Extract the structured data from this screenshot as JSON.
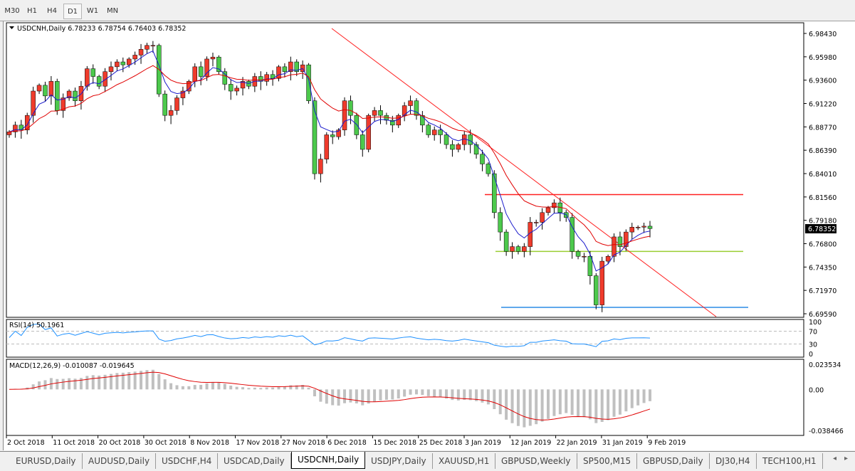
{
  "toolbar": {
    "timeframes": [
      "M30",
      "H1",
      "H4",
      "D1",
      "W1",
      "MN"
    ],
    "active": "D1"
  },
  "chart": {
    "header": "USDCNH,Daily  6.78233 6.78754 6.76403 6.78352",
    "current_price": "6.78352",
    "price_ticks": [
      "6.98430",
      "6.95980",
      "6.93600",
      "6.91220",
      "6.88770",
      "6.86390",
      "6.84010",
      "6.81560",
      "6.79180",
      "6.76800",
      "6.74350",
      "6.71970",
      "6.69590"
    ],
    "price_range": [
      6.6959,
      6.9843
    ],
    "date_ticks": [
      "2 Oct 2018",
      "11 Oct 2018",
      "20 Oct 2018",
      "30 Oct 2018",
      "8 Nov 2018",
      "17 Nov 2018",
      "27 Nov 2018",
      "6 Dec 2018",
      "15 Dec 2018",
      "25 Dec 2018",
      "3 Jan 2019",
      "12 Jan 2019",
      "22 Jan 2019",
      "31 Jan 2019",
      "9 Feb 2019"
    ],
    "closes": [
      6.883,
      6.89,
      6.885,
      6.9,
      6.925,
      6.931,
      6.92,
      6.935,
      6.905,
      6.918,
      6.925,
      6.915,
      6.93,
      6.948,
      6.94,
      6.93,
      6.945,
      6.95,
      6.955,
      6.952,
      6.958,
      6.962,
      6.968,
      6.972,
      6.972,
      6.922,
      6.9,
      6.905,
      6.918,
      6.925,
      6.935,
      6.95,
      6.94,
      6.958,
      6.96,
      6.945,
      6.932,
      6.925,
      6.928,
      6.935,
      6.93,
      6.94,
      6.935,
      6.942,
      6.938,
      6.95,
      6.945,
      6.955,
      6.945,
      6.952,
      6.915,
      6.84,
      6.855,
      6.88,
      6.878,
      6.885,
      6.915,
      6.9,
      6.88,
      6.865,
      6.9,
      6.905,
      6.9,
      6.895,
      6.89,
      6.9,
      6.91,
      6.915,
      6.9,
      6.89,
      6.88,
      6.885,
      6.88,
      6.87,
      6.865,
      6.87,
      6.88,
      6.87,
      6.86,
      6.85,
      6.84,
      6.8,
      6.78,
      6.76,
      6.765,
      6.76,
      6.765,
      6.79,
      6.79,
      6.8,
      6.805,
      6.81,
      6.8,
      6.795,
      6.76,
      6.755,
      6.755,
      6.735,
      6.705,
      6.75,
      6.755,
      6.775,
      6.765,
      6.78,
      6.785,
      6.785,
      6.786,
      6.78352
    ],
    "colors": {
      "bull": "#ef3b2c",
      "bear": "#4cc94c",
      "ma_fast": "#1c1ccc",
      "ma_slow": "#e00000",
      "resistance": "#ff2020",
      "support": "#9acd32",
      "low_line": "#2b8ce6",
      "trendline": "#ff2020"
    },
    "levels": {
      "resistance": 6.8185,
      "support": 6.76,
      "low": 6.7025
    },
    "trendline": {
      "from": 6.9894,
      "to": 6.6929
    }
  },
  "rsi": {
    "label": "RSI(14) 50.1961",
    "ticks": [
      "100",
      "70",
      "30",
      "0"
    ],
    "color": "#1e90ff"
  },
  "macd": {
    "label": "MACD(12,26,9) -0.010087 -0.019645",
    "ticks": [
      "0.023534",
      "0.00",
      "-0.038466"
    ],
    "range": [
      -0.038466,
      0.023534
    ],
    "hist_color": "#c0c0c0",
    "signal_color": "#e00000"
  },
  "tabs": [
    "EURUSD,Daily",
    "AUDUSD,Daily",
    "USDCHF,H4",
    "USDCAD,Daily",
    "USDCNH,Daily",
    "USDJPY,Daily",
    "XAUUSD,H1",
    "GBPUSD,Weekly",
    "SP500,M15",
    "GBPUSD,Daily",
    "DJ30,H4",
    "TECH100,H1"
  ],
  "active_tab": "USDCNH,Daily"
}
